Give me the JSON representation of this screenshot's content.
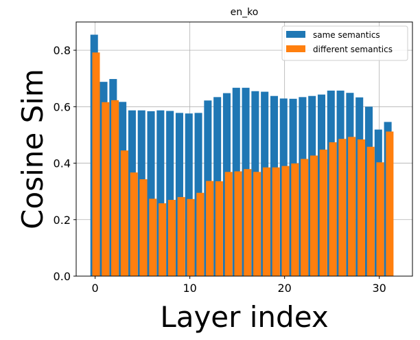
{
  "chart_data": {
    "type": "bar",
    "title": "en_ko",
    "xlabel": "Layer index",
    "ylabel": "Cosine Sim",
    "xlim": [
      -2,
      33.5
    ],
    "ylim": [
      0,
      0.9
    ],
    "xticks": [
      0,
      10,
      20,
      30
    ],
    "yticks": [
      0.0,
      0.2,
      0.4,
      0.6,
      0.8
    ],
    "xtick_labels": [
      "0",
      "10",
      "20",
      "30"
    ],
    "ytick_labels": [
      "0.0",
      "0.2",
      "0.4",
      "0.6",
      "0.8"
    ],
    "grid": true,
    "legend_position": "top-right",
    "x": [
      0,
      1,
      2,
      3,
      4,
      5,
      6,
      7,
      8,
      9,
      10,
      11,
      12,
      13,
      14,
      15,
      16,
      17,
      18,
      19,
      20,
      21,
      22,
      23,
      24,
      25,
      26,
      27,
      28,
      29,
      30,
      31
    ],
    "series": [
      {
        "name": "same semantics",
        "color": "#1f77b4",
        "values": [
          0.855,
          0.688,
          0.698,
          0.617,
          0.587,
          0.587,
          0.584,
          0.587,
          0.585,
          0.578,
          0.576,
          0.578,
          0.622,
          0.634,
          0.648,
          0.667,
          0.667,
          0.655,
          0.653,
          0.638,
          0.629,
          0.628,
          0.634,
          0.638,
          0.643,
          0.657,
          0.657,
          0.649,
          0.633,
          0.6,
          0.519,
          0.546
        ]
      },
      {
        "name": "different semantics",
        "color": "#ff7f0e",
        "values": [
          0.792,
          0.616,
          0.623,
          0.445,
          0.367,
          0.343,
          0.274,
          0.258,
          0.27,
          0.28,
          0.273,
          0.295,
          0.337,
          0.336,
          0.369,
          0.371,
          0.379,
          0.369,
          0.385,
          0.385,
          0.39,
          0.399,
          0.415,
          0.427,
          0.448,
          0.474,
          0.486,
          0.493,
          0.484,
          0.458,
          0.403,
          0.512
        ]
      }
    ]
  }
}
